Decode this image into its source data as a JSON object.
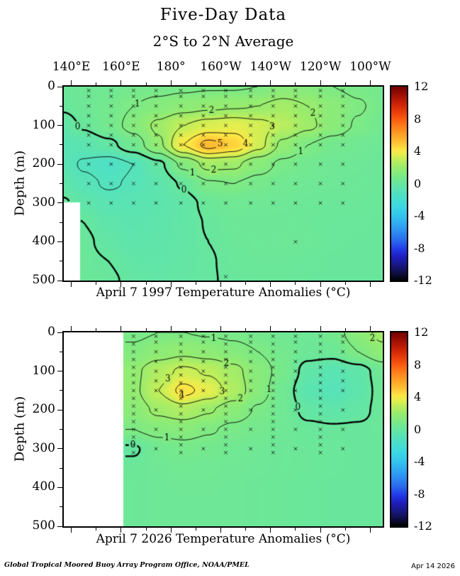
{
  "title": "Five-Day Data",
  "subtitle": "2°S to 2°N Average",
  "footer": {
    "left": "Global Tropical Moored Buoy Array Program Office, NOAA/PMEL",
    "right": "Apr 14 2026"
  },
  "axes": {
    "ylabel": "Depth (m)",
    "lon_range": [
      137,
      265
    ],
    "depth_range": [
      0,
      500
    ],
    "lon_ticks": [
      {
        "lon": 140,
        "label": "140°E"
      },
      {
        "lon": 160,
        "label": "160°E"
      },
      {
        "lon": 180,
        "label": "180°"
      },
      {
        "lon": 200,
        "label": "160°W"
      },
      {
        "lon": 220,
        "label": "140°W"
      },
      {
        "lon": 240,
        "label": "120°W"
      },
      {
        "lon": 260,
        "label": "100°W"
      }
    ],
    "lon_minor": [
      150,
      170,
      190,
      210,
      230,
      250
    ],
    "depth_ticks": [
      0,
      100,
      200,
      300,
      400,
      500
    ],
    "depth_minor": [
      50,
      150,
      250,
      350,
      450
    ]
  },
  "colorbar": {
    "range": [
      -12,
      12
    ],
    "ticks": [
      12,
      8,
      4,
      0,
      -4,
      -8,
      -12
    ],
    "stops": [
      [
        -12,
        "#000000"
      ],
      [
        -11.2,
        "#0d0d3a"
      ],
      [
        -10.2,
        "#17177e"
      ],
      [
        -9.2,
        "#1d1db6"
      ],
      [
        -8.2,
        "#2236e6"
      ],
      [
        -7,
        "#2a6cee"
      ],
      [
        -5.5,
        "#2f9cf2"
      ],
      [
        -4,
        "#33c4ee"
      ],
      [
        -3,
        "#3bd6e6"
      ],
      [
        -2,
        "#46ded2"
      ],
      [
        -1,
        "#55e2bc"
      ],
      [
        0,
        "#67e69e"
      ],
      [
        1,
        "#7eea84"
      ],
      [
        2,
        "#98ec6e"
      ],
      [
        3,
        "#c2ee5a"
      ],
      [
        3.6,
        "#e6ee4e"
      ],
      [
        4.2,
        "#ffe644"
      ],
      [
        5,
        "#ffc436"
      ],
      [
        6,
        "#ffa428"
      ],
      [
        7,
        "#ff811c"
      ],
      [
        8,
        "#fa5a10"
      ],
      [
        9,
        "#e6390a"
      ],
      [
        10,
        "#c62006"
      ],
      [
        11,
        "#9c1004"
      ],
      [
        12,
        "#700000"
      ]
    ]
  },
  "chart_data": [
    {
      "type": "heatmap",
      "name": "top-panel",
      "caption": "April 7 1997 Temperature Anomalies (°C)",
      "units": "°C",
      "lons": [
        137,
        145,
        155,
        165,
        175,
        185,
        195,
        205,
        215,
        225,
        235,
        245,
        255,
        265
      ],
      "depths": [
        0,
        50,
        100,
        150,
        200,
        250,
        300,
        350,
        400,
        450,
        500
      ],
      "values": [
        [
          0.2,
          0.3,
          0.4,
          0.6,
          0.7,
          0.8,
          0.9,
          0.9,
          1.0,
          1.4,
          1.3,
          1.0,
          0.8,
          0.6
        ],
        [
          0.1,
          0.3,
          0.6,
          1.0,
          1.3,
          1.6,
          1.8,
          1.9,
          2.0,
          2.3,
          2.0,
          1.5,
          1.1,
          0.7
        ],
        [
          -0.3,
          0.1,
          0.6,
          1.3,
          2.2,
          3.0,
          3.4,
          3.6,
          3.3,
          2.8,
          2.2,
          1.5,
          0.9,
          0.5
        ],
        [
          -0.8,
          -0.6,
          -0.2,
          0.5,
          1.8,
          4.0,
          5.3,
          4.7,
          3.3,
          1.8,
          1.0,
          0.6,
          0.4,
          0.3
        ],
        [
          -0.7,
          -1.1,
          -1.4,
          -1.0,
          -0.2,
          1.2,
          2.3,
          2.2,
          1.4,
          0.8,
          0.5,
          0.35,
          0.3,
          0.25
        ],
        [
          -0.4,
          -0.8,
          -1.1,
          -0.9,
          -0.5,
          0.1,
          0.9,
          1.0,
          0.7,
          0.45,
          0.35,
          0.3,
          0.25,
          0.2
        ],
        [
          0.1,
          -0.4,
          -0.7,
          -0.7,
          -0.55,
          -0.3,
          0.2,
          0.4,
          0.35,
          0.3,
          0.25,
          0.2,
          0.2,
          0.15
        ],
        [
          0.2,
          0.0,
          -0.45,
          -0.55,
          -0.45,
          -0.3,
          0.05,
          0.25,
          0.27,
          0.25,
          0.2,
          0.15,
          0.15,
          0.1
        ],
        [
          0.25,
          0.15,
          -0.25,
          -0.45,
          -0.4,
          -0.25,
          0.0,
          0.2,
          0.25,
          0.3,
          0.25,
          0.15,
          0.1,
          0.1
        ],
        [
          0.25,
          0.2,
          0.0,
          -0.3,
          -0.35,
          -0.2,
          -0.05,
          0.15,
          0.2,
          0.2,
          0.15,
          0.1,
          0.1,
          0.1
        ],
        [
          0.25,
          0.2,
          0.1,
          -0.15,
          -0.25,
          -0.15,
          -0.05,
          0.1,
          0.15,
          0.15,
          0.1,
          0.1,
          0.1,
          0.1
        ]
      ],
      "mask": [
        {
          "lon_min": 137,
          "lon_max": 143.5,
          "depth_min": 298,
          "depth_max": 500
        }
      ],
      "contour_levels": {
        "dashed": [
          -1
        ],
        "thick": [
          0
        ],
        "solid": [
          1,
          2,
          3,
          4,
          5
        ]
      },
      "contour_labels": [
        {
          "level": 0,
          "lon": 139,
          "depth": 112
        },
        {
          "level": 0,
          "lon": 185,
          "depth": 266
        },
        {
          "level": 1,
          "lon": 170,
          "depth": 80
        },
        {
          "level": 1,
          "lon": 230,
          "depth": 150
        },
        {
          "level": 1,
          "lon": 187,
          "depth": 238
        },
        {
          "level": 2,
          "lon": 196,
          "depth": 92
        },
        {
          "level": 2,
          "lon": 236,
          "depth": 72
        },
        {
          "level": 2,
          "lon": 197,
          "depth": 214
        },
        {
          "level": 3,
          "lon": 225,
          "depth": 118
        },
        {
          "level": 4,
          "lon": 212,
          "depth": 148
        },
        {
          "level": 5,
          "lon": 204,
          "depth": 150
        }
      ],
      "marker_columns": [
        {
          "lon": 147,
          "depths": [
            10,
            25,
            50,
            75,
            100,
            125,
            150,
            200,
            250,
            300
          ]
        },
        {
          "lon": 156,
          "depths": [
            10,
            25,
            50,
            75,
            100,
            125,
            150,
            200,
            250,
            300
          ]
        },
        {
          "lon": 165,
          "depths": [
            10,
            25,
            50,
            75,
            100,
            125,
            150,
            200,
            250,
            300
          ]
        },
        {
          "lon": 174,
          "depths": [
            10,
            25,
            50,
            75,
            100,
            125,
            150,
            200,
            250,
            300
          ]
        },
        {
          "lon": 184,
          "depths": [
            10,
            25,
            50,
            75,
            100,
            125,
            150,
            200,
            250,
            300
          ]
        },
        {
          "lon": 193,
          "depths": [
            10,
            25,
            50,
            75,
            100,
            125,
            150,
            200,
            250,
            300
          ]
        },
        {
          "lon": 202,
          "depths": [
            10,
            25,
            50,
            75,
            100,
            125,
            150,
            200,
            250,
            300,
            490
          ]
        },
        {
          "lon": 212,
          "depths": [
            10,
            25,
            50,
            75,
            100,
            125,
            150,
            200,
            250,
            300
          ]
        },
        {
          "lon": 221,
          "depths": [
            10,
            25,
            50,
            75,
            100,
            125,
            150,
            200,
            250,
            300
          ]
        },
        {
          "lon": 230,
          "depths": [
            10,
            25,
            50,
            75,
            100,
            125,
            150,
            200,
            250,
            300,
            400
          ]
        },
        {
          "lon": 240,
          "depths": [
            10,
            25,
            50,
            75,
            100,
            125,
            150,
            200,
            250,
            300
          ]
        },
        {
          "lon": 249,
          "depths": [
            10,
            25,
            50,
            75,
            100,
            125,
            150,
            200,
            250,
            300
          ]
        }
      ]
    },
    {
      "type": "heatmap",
      "name": "bottom-panel",
      "caption": "April 7 2026 Temperature Anomalies (°C)",
      "units": "°C",
      "lons": [
        137,
        145,
        155,
        165,
        175,
        185,
        195,
        205,
        215,
        225,
        235,
        245,
        255,
        265
      ],
      "depths": [
        0,
        50,
        100,
        150,
        200,
        250,
        300,
        350,
        400,
        450,
        500
      ],
      "values": [
        [
          0.8,
          0.8,
          0.8,
          0.8,
          1.0,
          1.0,
          0.9,
          0.8,
          0.6,
          0.4,
          0.3,
          0.6,
          1.5,
          2.3
        ],
        [
          1.2,
          1.2,
          1.2,
          1.2,
          1.6,
          1.8,
          1.6,
          1.3,
          1.0,
          0.6,
          0.25,
          0.3,
          1.0,
          1.7
        ],
        [
          1.8,
          1.8,
          1.8,
          1.8,
          2.6,
          3.2,
          2.9,
          2.3,
          1.4,
          0.7,
          -0.3,
          -0.7,
          -0.4,
          0.4
        ],
        [
          1.8,
          1.8,
          1.8,
          1.8,
          3.0,
          4.3,
          3.6,
          2.6,
          1.4,
          0.4,
          -0.6,
          -0.9,
          -0.5,
          0.3
        ],
        [
          1.5,
          1.5,
          1.5,
          1.5,
          2.2,
          2.6,
          2.1,
          1.5,
          0.9,
          0.4,
          -0.2,
          -0.4,
          -0.2,
          0.2
        ],
        [
          1.0,
          1.0,
          1.0,
          1.0,
          1.3,
          1.4,
          1.1,
          0.8,
          0.6,
          0.35,
          0.15,
          0.1,
          0.1,
          0.15
        ],
        [
          -0.1,
          -0.1,
          -0.1,
          -0.1,
          0.5,
          0.7,
          0.6,
          0.45,
          0.35,
          0.25,
          0.2,
          0.15,
          0.1,
          0.1
        ],
        [
          0.2,
          0.2,
          0.2,
          0.2,
          0.35,
          0.45,
          0.4,
          0.35,
          0.3,
          0.25,
          0.2,
          0.15,
          0.1,
          0.1
        ],
        [
          0.25,
          0.25,
          0.25,
          0.25,
          0.3,
          0.35,
          0.35,
          0.3,
          0.25,
          0.2,
          0.15,
          0.1,
          0.1,
          0.1
        ],
        [
          0.25,
          0.25,
          0.25,
          0.25,
          0.3,
          0.3,
          0.3,
          0.3,
          0.25,
          0.2,
          0.15,
          0.1,
          0.1,
          0.1
        ],
        [
          0.25,
          0.25,
          0.25,
          0.25,
          0.3,
          0.3,
          0.3,
          0.3,
          0.25,
          0.2,
          0.15,
          0.1,
          0.1,
          0.1
        ]
      ],
      "mask": [
        {
          "lon_min": 137,
          "lon_max": 161,
          "depth_min": 0,
          "depth_max": 500
        }
      ],
      "contour_levels": {
        "dashed": [
          -1
        ],
        "thick": [
          0
        ],
        "solid": [
          1,
          2,
          3,
          4
        ]
      },
      "contour_labels": [
        {
          "level": 1,
          "lon": 196,
          "depth": 75
        },
        {
          "level": 2,
          "lon": 202,
          "depth": 88
        },
        {
          "level": 3,
          "lon": 180,
          "depth": 128
        },
        {
          "level": 4,
          "lon": 183,
          "depth": 195
        },
        {
          "level": 3,
          "lon": 205,
          "depth": 158
        },
        {
          "level": 2,
          "lon": 208,
          "depth": 172
        },
        {
          "level": 1,
          "lon": 222,
          "depth": 148
        },
        {
          "level": 0,
          "lon": 236,
          "depth": 188
        },
        {
          "level": 2,
          "lon": 251,
          "depth": 20
        },
        {
          "level": 1,
          "lon": 179,
          "depth": 250
        },
        {
          "level": 0,
          "lon": 165,
          "depth": 300
        }
      ],
      "marker_columns": [
        {
          "lon": 165,
          "depths": [
            10,
            30,
            50,
            70,
            90,
            110,
            130,
            150,
            170,
            190,
            210,
            230,
            250,
            270,
            290,
            310
          ]
        },
        {
          "lon": 174,
          "depths": [
            10,
            25,
            50,
            75,
            100,
            125,
            150,
            200,
            250,
            300
          ]
        },
        {
          "lon": 184,
          "depths": [
            10,
            30,
            50,
            70,
            90,
            110,
            130,
            150,
            170,
            190,
            210,
            230,
            250,
            270,
            290,
            310
          ]
        },
        {
          "lon": 193,
          "depths": [
            10,
            25,
            50,
            75,
            100,
            125,
            150,
            200,
            250,
            300
          ]
        },
        {
          "lon": 202,
          "depths": [
            10,
            30,
            50,
            70,
            90,
            110,
            130,
            150,
            170,
            190,
            210,
            230,
            250,
            270,
            290,
            310
          ]
        },
        {
          "lon": 212,
          "depths": [
            10,
            25,
            50,
            75,
            100,
            125,
            150,
            200,
            250,
            300
          ]
        },
        {
          "lon": 221,
          "depths": [
            10,
            30,
            50,
            70,
            90,
            110,
            130,
            150,
            170,
            190,
            210,
            230,
            250,
            270,
            290,
            310
          ]
        },
        {
          "lon": 230,
          "depths": [
            10,
            25,
            50,
            75,
            100,
            125,
            150,
            200,
            250,
            300
          ]
        },
        {
          "lon": 240,
          "depths": [
            10,
            30,
            50,
            70,
            90,
            110,
            130,
            150,
            170,
            190,
            210,
            230,
            250,
            270,
            290,
            310
          ]
        },
        {
          "lon": 249,
          "depths": [
            10,
            25,
            50,
            75,
            100,
            125,
            150,
            200,
            250,
            300
          ]
        }
      ]
    }
  ]
}
